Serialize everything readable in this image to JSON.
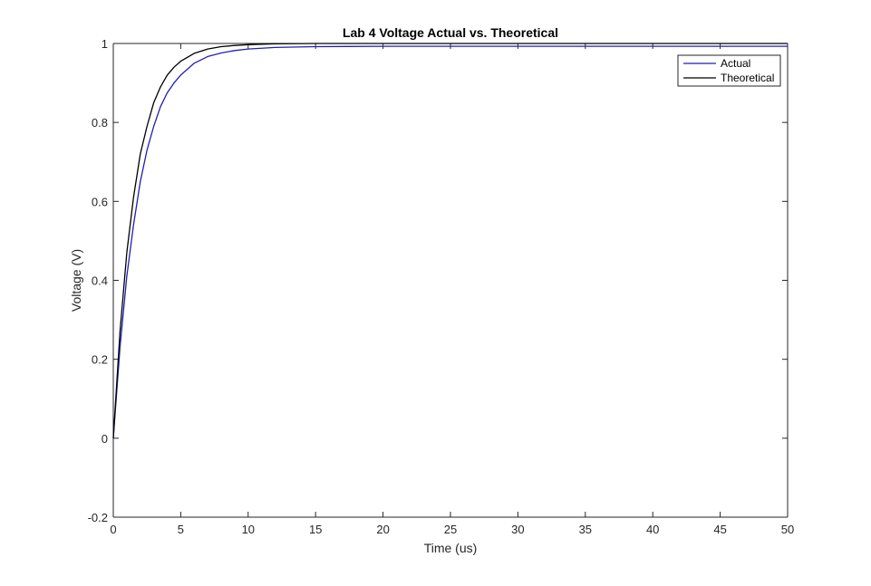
{
  "chart_data": {
    "type": "line",
    "title": "Lab 4 Voltage Actual vs. Theoretical",
    "xlabel": "Time (us)",
    "ylabel": "Voltage (V)",
    "xlim": [
      0,
      50
    ],
    "ylim": [
      -0.2,
      1
    ],
    "x_ticks": [
      "0",
      "5",
      "10",
      "15",
      "20",
      "25",
      "30",
      "35",
      "40",
      "45",
      "50"
    ],
    "y_ticks": [
      "-0.2",
      "0",
      "0.2",
      "0.4",
      "0.6",
      "0.8",
      "1"
    ],
    "grid": false,
    "legend_position": "top-right",
    "series": [
      {
        "name": "Actual",
        "color": "#1f1fb4",
        "x": [
          0,
          0.5,
          1,
          1.5,
          2,
          2.5,
          3,
          3.5,
          4,
          4.5,
          5,
          6,
          7,
          8,
          9,
          10,
          12,
          15,
          20,
          25,
          30,
          35,
          40,
          45,
          50
        ],
        "y": [
          0.0,
          0.23,
          0.41,
          0.54,
          0.65,
          0.73,
          0.79,
          0.84,
          0.875,
          0.9,
          0.92,
          0.95,
          0.967,
          0.976,
          0.982,
          0.986,
          0.99,
          0.992,
          0.993,
          0.993,
          0.993,
          0.993,
          0.993,
          0.993,
          0.993
        ]
      },
      {
        "name": "Theoretical",
        "color": "#000000",
        "x": [
          0,
          0.5,
          1,
          1.5,
          2,
          2.5,
          3,
          3.5,
          4,
          4.5,
          5,
          6,
          7,
          8,
          9,
          10,
          12,
          15,
          20,
          25,
          30,
          35,
          40,
          45,
          50
        ],
        "y": [
          0.0,
          0.27,
          0.47,
          0.61,
          0.72,
          0.79,
          0.85,
          0.89,
          0.92,
          0.94,
          0.955,
          0.975,
          0.986,
          0.992,
          0.995,
          0.997,
          0.999,
          1.0,
          1.0,
          1.0,
          1.0,
          1.0,
          1.0,
          1.0,
          1.0
        ]
      }
    ]
  }
}
